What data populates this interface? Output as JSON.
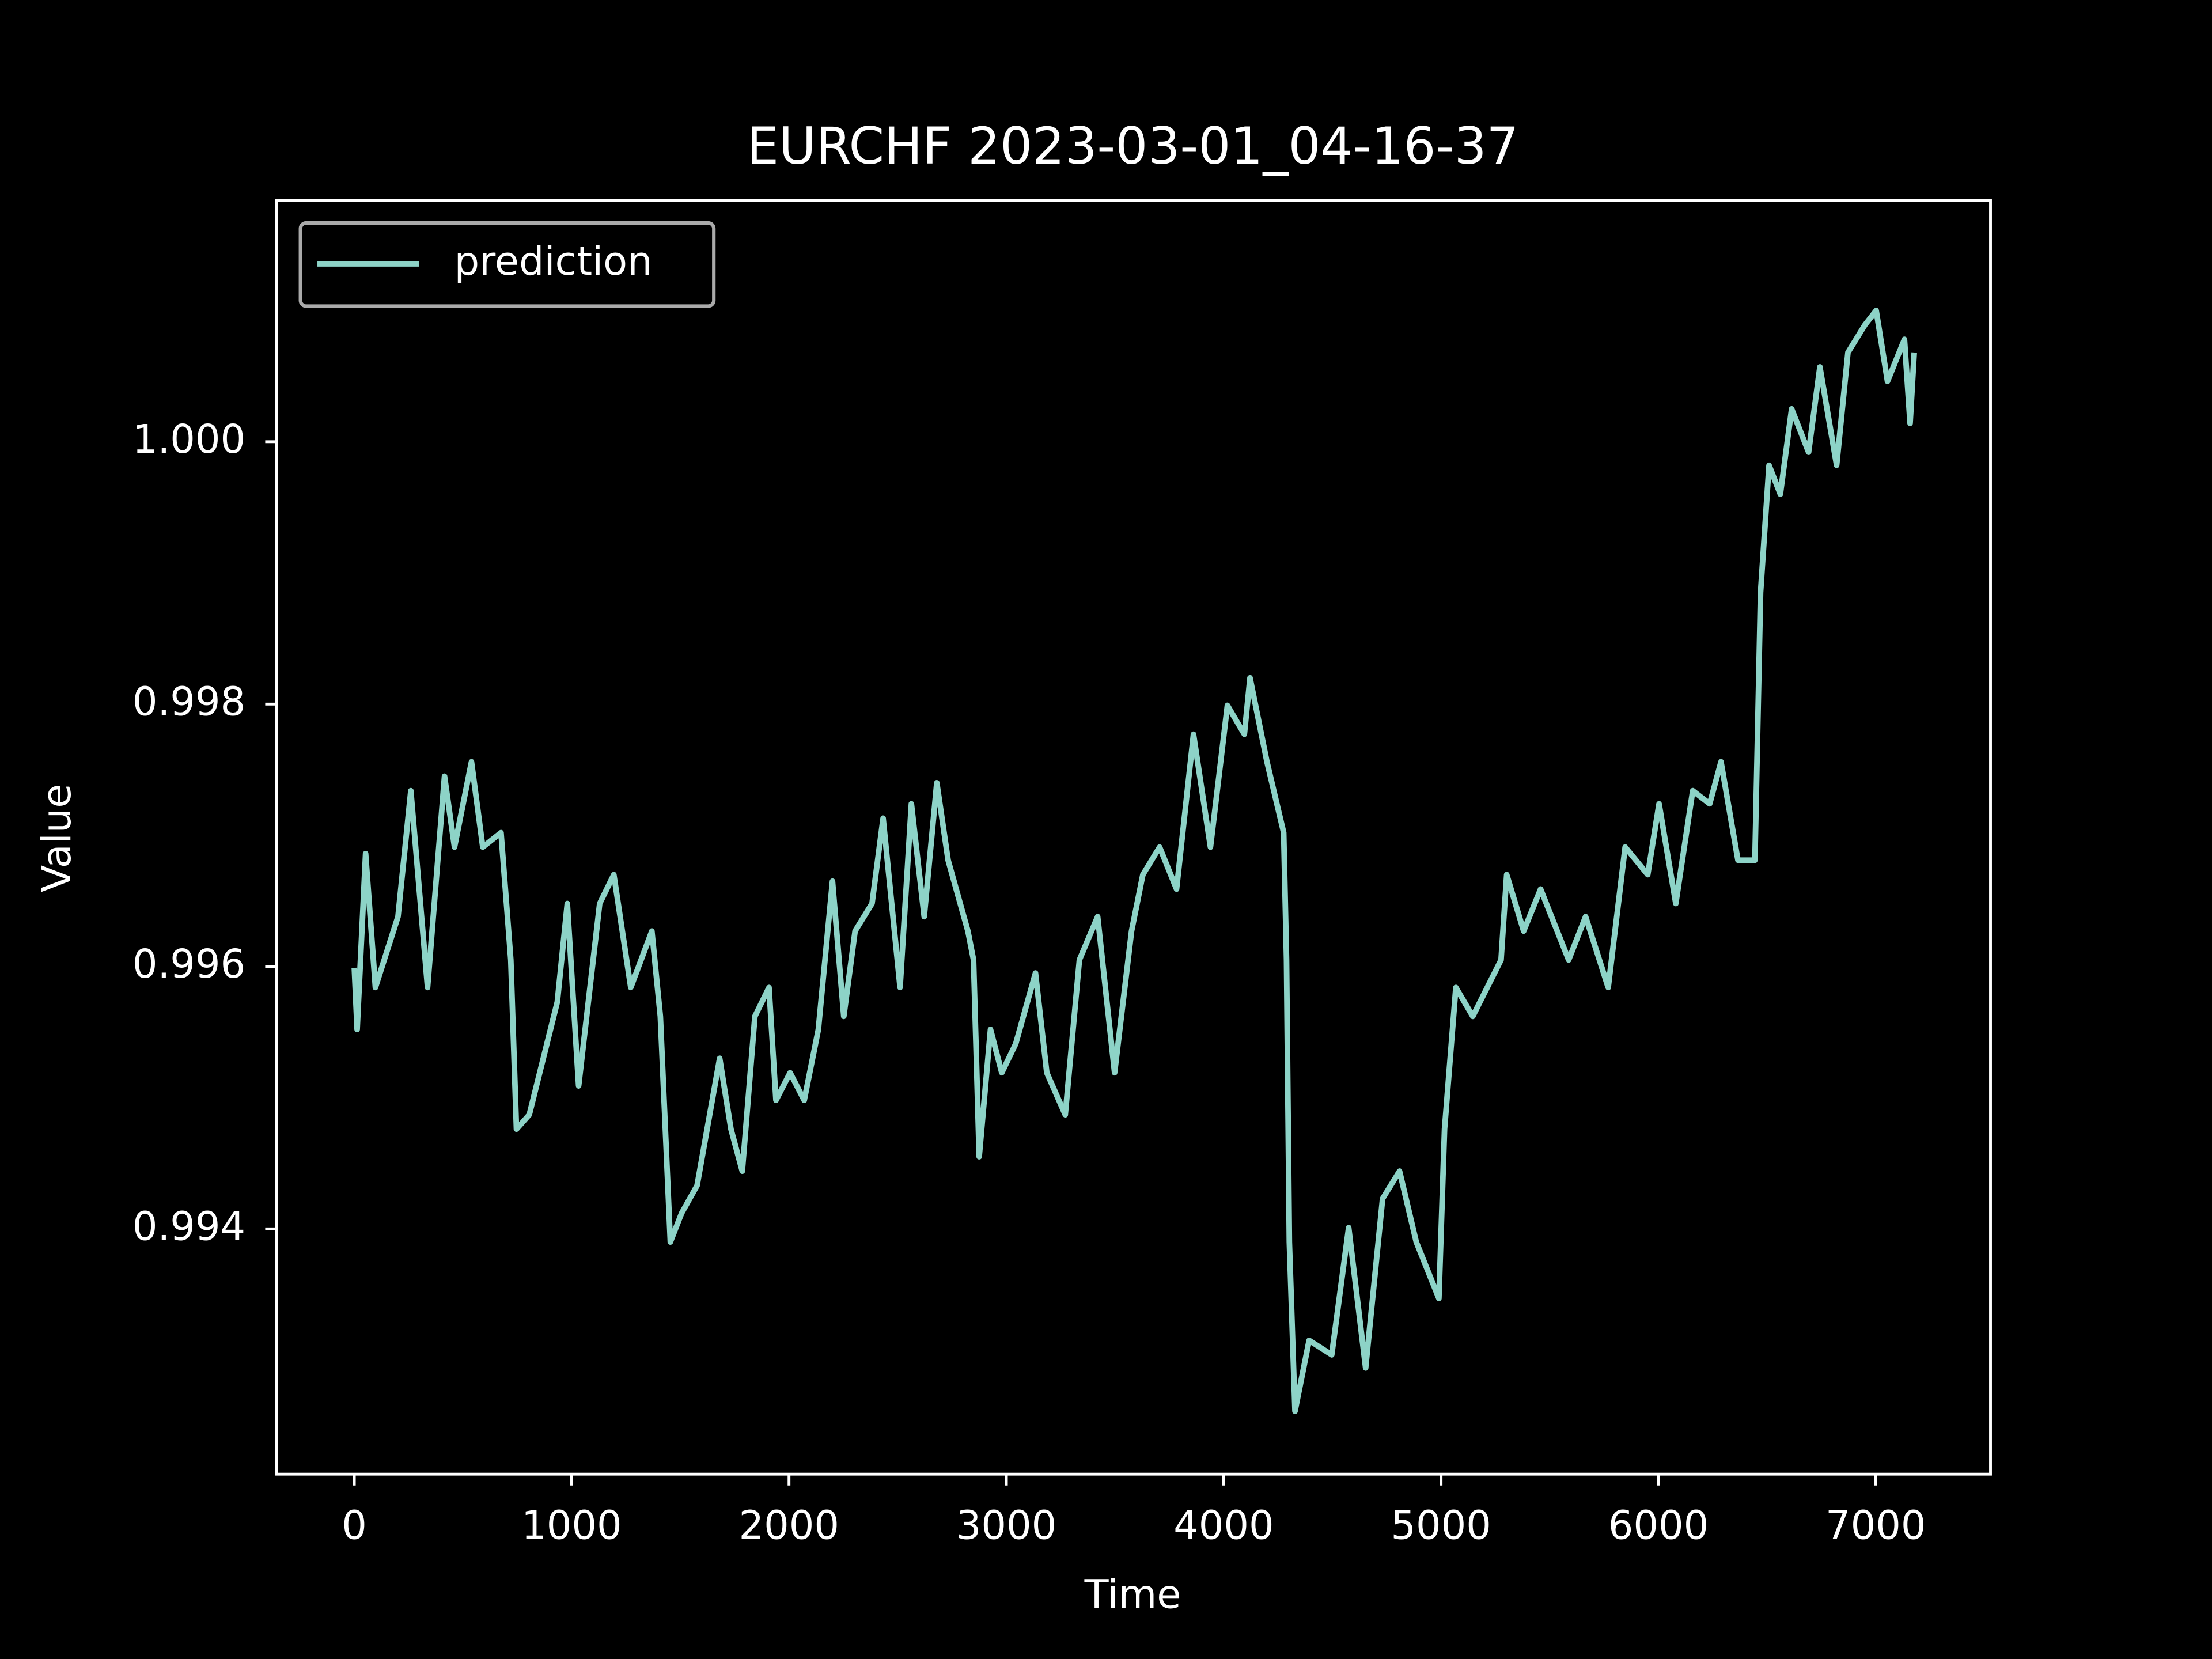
{
  "chart_data": {
    "type": "line",
    "title": "EURCHF 2023-03-01_04-16-37",
    "xlabel": "Time",
    "ylabel": "Value",
    "x": [
      0,
      13,
      52,
      97,
      201,
      260,
      337,
      415,
      461,
      539,
      591,
      675,
      720,
      746,
      805,
      934,
      980,
      1032,
      1129,
      1194,
      1272,
      1369,
      1408,
      1454,
      1506,
      1577,
      1681,
      1733,
      1785,
      1843,
      1908,
      1940,
      2005,
      2070,
      2135,
      2200,
      2252,
      2304,
      2382,
      2433,
      2511,
      2563,
      2622,
      2680,
      2732,
      2823,
      2849,
      2875,
      2927,
      2979,
      3043,
      3134,
      3186,
      3271,
      3336,
      3420,
      3498,
      3576,
      3628,
      3705,
      3783,
      3861,
      3939,
      4017,
      4095,
      4121,
      4199,
      4276,
      4289,
      4302,
      4328,
      4393,
      4497,
      4575,
      4653,
      4731,
      4809,
      4886,
      4990,
      5016,
      5068,
      5146,
      5276,
      5302,
      5380,
      5458,
      5587,
      5665,
      5769,
      5847,
      5951,
      6003,
      6080,
      6158,
      6236,
      6288,
      6366,
      6444,
      6470,
      6509,
      6561,
      6613,
      6691,
      6743,
      6820,
      6872,
      6950,
      7002,
      7054,
      7132,
      7158,
      7177
    ],
    "series": [
      {
        "name": "prediction",
        "color": "#8dd3c7",
        "values": [
          0.99599,
          0.99552,
          0.99686,
          0.99584,
          0.99638,
          0.99734,
          0.99584,
          0.99745,
          0.99691,
          0.99756,
          0.99691,
          0.99702,
          0.99605,
          0.99476,
          0.99487,
          0.99573,
          0.99648,
          0.99509,
          0.99648,
          0.9967,
          0.99584,
          0.99627,
          0.99562,
          0.9939,
          0.99412,
          0.99433,
          0.9953,
          0.99476,
          0.99444,
          0.99562,
          0.99584,
          0.99498,
          0.99519,
          0.99498,
          0.99552,
          0.99665,
          0.99562,
          0.99627,
          0.99648,
          0.99713,
          0.99584,
          0.99724,
          0.99638,
          0.9974,
          0.99681,
          0.99627,
          0.99605,
          0.99455,
          0.99552,
          0.99519,
          0.99541,
          0.99595,
          0.99519,
          0.99487,
          0.99605,
          0.99638,
          0.99519,
          0.99627,
          0.9967,
          0.99691,
          0.99659,
          0.99777,
          0.99691,
          0.99799,
          0.99777,
          0.9982,
          0.99756,
          0.99702,
          0.99605,
          0.9939,
          0.99261,
          0.99315,
          0.99304,
          0.99401,
          0.99294,
          0.99423,
          0.99444,
          0.9939,
          0.99347,
          0.99476,
          0.99584,
          0.99562,
          0.99605,
          0.9967,
          0.99627,
          0.99659,
          0.99605,
          0.99638,
          0.99584,
          0.99691,
          0.9967,
          0.99724,
          0.99648,
          0.99734,
          0.99724,
          0.99756,
          0.99681,
          0.99681,
          0.99885,
          0.99982,
          0.9996,
          1.00025,
          0.99992,
          1.00057,
          0.99982,
          1.00068,
          1.00089,
          1.001,
          1.00046,
          1.00078,
          1.00014,
          1.00068
        ]
      }
    ],
    "xlim": [
      -358,
      7528
    ],
    "ylim": [
      0.99213,
      1.00184
    ],
    "xticks": [
      0,
      1000,
      2000,
      3000,
      4000,
      5000,
      6000,
      7000
    ],
    "yticks": [
      0.994,
      0.996,
      0.998,
      {
        "value": 1,
        "label": "1.000"
      }
    ],
    "legend": "upper left"
  }
}
